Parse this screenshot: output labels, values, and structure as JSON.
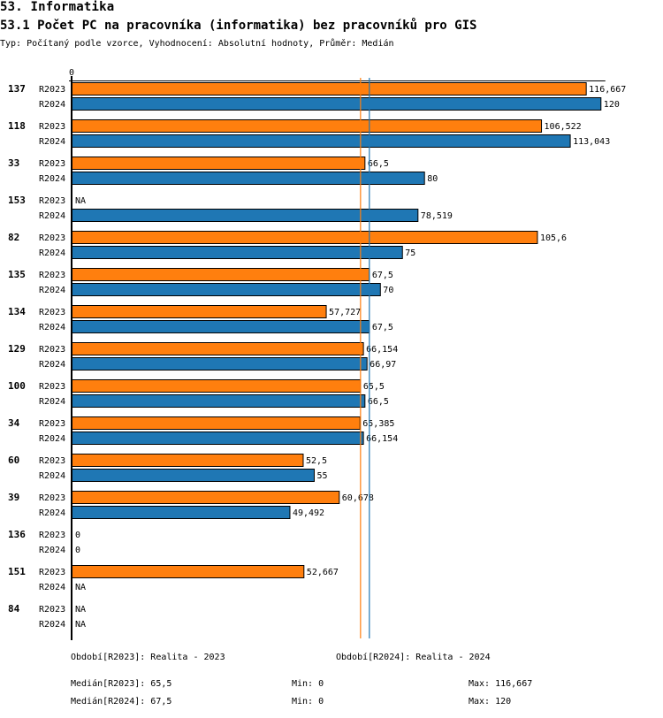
{
  "header": {
    "section": "53. Informatika",
    "title": "53.1 Počet PC na pracovníka (informatika) bez pracovníků pro GIS",
    "subtitle": "Typ: Počítaný podle vzorce, Vyhodnocení: Absolutní hodnoty, Průměr: Medián"
  },
  "colors": {
    "R2023": "#ff7f0e",
    "R2024": "#1f77b4",
    "axis": "#000000"
  },
  "chart_data": {
    "type": "bar",
    "orientation": "horizontal",
    "title": "53.1 Počet PC na pracovníka (informatika) bez pracovníků pro GIS",
    "xlabel": "",
    "ylabel": "",
    "xlim": [
      0,
      121
    ],
    "x_tick_labels": [
      "0"
    ],
    "grid": false,
    "categories": [
      "137",
      "118",
      "33",
      "153",
      "82",
      "135",
      "134",
      "129",
      "100",
      "34",
      "60",
      "39",
      "136",
      "151",
      "84"
    ],
    "series": [
      {
        "name": "R2023",
        "color": "#ff7f0e",
        "values": [
          116.667,
          106.522,
          66.5,
          null,
          105.6,
          67.5,
          57.727,
          66.154,
          65.5,
          65.385,
          52.5,
          60.678,
          0,
          52.667,
          null
        ],
        "labels": [
          "116,667",
          "106,522",
          "66,5",
          "NA",
          "105,6",
          "67,5",
          "57,727",
          "66,154",
          "65,5",
          "65,385",
          "52,5",
          "60,678",
          "0",
          "52,667",
          "NA"
        ]
      },
      {
        "name": "R2024",
        "color": "#1f77b4",
        "values": [
          120,
          113.043,
          80,
          78.519,
          75,
          70,
          67.5,
          66.97,
          66.5,
          66.154,
          55,
          49.492,
          0,
          null,
          null
        ],
        "labels": [
          "120",
          "113,043",
          "80",
          "78,519",
          "75",
          "70",
          "67,5",
          "66,97",
          "66,5",
          "66,154",
          "55",
          "49,492",
          "0",
          "NA",
          "NA"
        ]
      }
    ],
    "reference_lines": [
      {
        "name": "Medián R2023",
        "value": 65.5,
        "color": "#ff7f0e"
      },
      {
        "name": "Medián R2024",
        "value": 67.5,
        "color": "#1f77b4"
      }
    ]
  },
  "footer": {
    "period_2023": "Období[R2023]: Realita - 2023",
    "period_2024": "Období[R2024]: Realita - 2024",
    "median_2023": "Medián[R2023]: 65,5",
    "min_2023": "Min: 0",
    "max_2023": "Max: 116,667",
    "median_2024": "Medián[R2024]: 67,5",
    "min_2024": "Min: 0",
    "max_2024": "Max: 120"
  }
}
